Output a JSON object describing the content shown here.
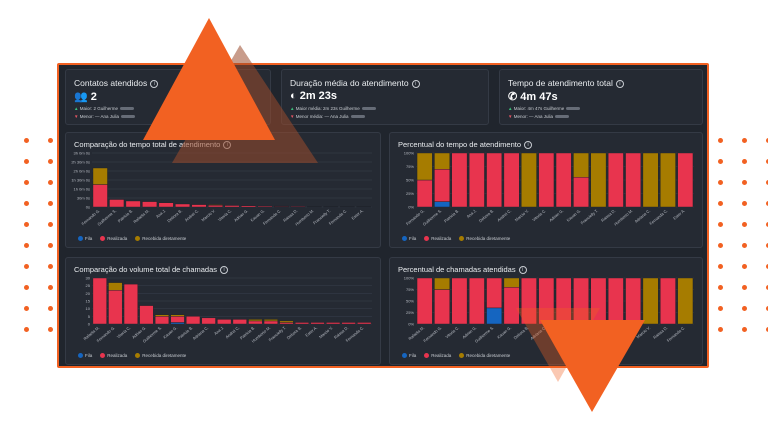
{
  "colors": {
    "accent": "#f26122",
    "fila": "#1565c0",
    "realizada": "#e8344e",
    "recebida": "#a67c00"
  },
  "kpis": [
    {
      "title": "Contatos atendidos",
      "icon": "people-icon",
      "value": "2",
      "max": "Maior: 2 Guilherme",
      "min": "Menor: — Ana Julia"
    },
    {
      "title": "Duração média do atendimento",
      "icon": "headset-icon",
      "value": "2m 23s",
      "max": "Maior média: 2m 23s Guilherme",
      "min": "Menor média: — Ana Julia"
    },
    {
      "title": "Tempo de atendimento total",
      "icon": "phone-icon",
      "value": "4m 47s",
      "max": "Maior: 4m 47s Guilherme",
      "min": "Menor: — Ana Julia"
    }
  ],
  "legend": {
    "fila": "Fila",
    "realizada": "Realizada",
    "recebida": "Recebida diretamente"
  },
  "chart_data": [
    {
      "type": "bar",
      "title": "Comparação do tempo total de atendimento",
      "categories": [
        "Fernando G.",
        "Guilherme S.",
        "Patricia B.",
        "Rafaela M.",
        "Ana J.",
        "Debora B.",
        "Andrei C.",
        "Marcio V.",
        "Vitoria C.",
        "Adrian G.",
        "Kauan G.",
        "Fernanda C.",
        "Raissa D.",
        "Humberto M.",
        "Francielly T.",
        "Fernanda C.",
        "Ester A."
      ],
      "ylabels": [
        "0s",
        "30m 0s",
        "1h 0m 0s",
        "1h 30m 0s",
        "2h 0m 0s",
        "2h 30m 0s",
        "3h 0m 0s"
      ],
      "ylim": [
        0,
        180
      ],
      "series": [
        {
          "name": "Fila",
          "values": [
            0,
            0,
            0,
            0,
            0,
            0,
            0,
            0,
            0,
            0,
            0,
            0,
            0,
            0,
            0,
            0,
            0
          ]
        },
        {
          "name": "Realizada",
          "values": [
            75,
            25,
            20,
            18,
            14,
            10,
            8,
            6,
            5,
            4,
            3,
            2,
            2,
            1,
            1,
            1,
            1
          ]
        },
        {
          "name": "Recebida diretamente",
          "values": [
            55,
            0,
            0,
            0,
            0,
            0,
            0,
            2,
            0,
            0,
            0,
            1,
            0,
            0,
            0,
            0,
            0
          ]
        }
      ]
    },
    {
      "type": "bar",
      "title": "Percentual do tempo de atendimento",
      "categories": [
        "Fernando G.",
        "Guilherme S.",
        "Patricia B.",
        "Ana J.",
        "Debora B.",
        "Andrei C.",
        "Marcio V.",
        "Vitoria C.",
        "Adrian G.",
        "Kauan G.",
        "Francielly T.",
        "Raissa D.",
        "Humberto M.",
        "Adriana C.",
        "Fernanda C.",
        "Ester A."
      ],
      "ylabels": [
        "0%",
        "25%",
        "50%",
        "75%",
        "100%"
      ],
      "ylim": [
        0,
        100
      ],
      "series": [
        {
          "name": "Fila",
          "values": [
            0,
            10,
            0,
            0,
            0,
            0,
            0,
            0,
            0,
            0,
            0,
            0,
            0,
            0,
            0,
            0
          ]
        },
        {
          "name": "Realizada",
          "values": [
            50,
            60,
            100,
            100,
            100,
            100,
            0,
            100,
            100,
            55,
            0,
            100,
            100,
            0,
            0,
            100
          ]
        },
        {
          "name": "Recebida diretamente",
          "values": [
            50,
            30,
            0,
            0,
            0,
            0,
            100,
            0,
            0,
            45,
            100,
            0,
            0,
            100,
            100,
            0
          ]
        }
      ]
    },
    {
      "type": "bar",
      "title": "Comparação do volume total de chamadas",
      "categories": [
        "Rafaela M.",
        "Fernando G.",
        "Vitoria C.",
        "Adrian G.",
        "Guilherme S.",
        "Kauan G.",
        "Patricia B.",
        "Adriana C.",
        "Ana J.",
        "Andrei C.",
        "Patricia B.",
        "Humberto M.",
        "Francielly T.",
        "Debora B.",
        "Ester A.",
        "Marcio V.",
        "Raissa D.",
        "Fernanda C."
      ],
      "ylabels": [
        "0",
        "5",
        "10",
        "15",
        "20",
        "25",
        "30"
      ],
      "ylim": [
        0,
        30
      ],
      "series": [
        {
          "name": "Fila",
          "values": [
            0,
            0,
            0,
            0,
            0,
            1,
            0,
            0,
            0,
            0,
            0,
            0,
            0,
            0,
            0,
            0,
            0,
            0
          ]
        },
        {
          "name": "Realizada",
          "values": [
            30,
            22,
            26,
            12,
            5,
            4,
            5,
            4,
            3,
            3,
            2,
            2,
            1,
            1,
            1,
            1,
            1,
            1
          ]
        },
        {
          "name": "Recebida diretamente",
          "values": [
            0,
            5,
            0,
            0,
            1,
            1,
            0,
            0,
            0,
            0,
            1,
            1,
            1,
            0,
            0,
            0,
            0,
            0
          ]
        }
      ]
    },
    {
      "type": "bar",
      "title": "Percentual de chamadas atendidas",
      "categories": [
        "Rafaela M.",
        "Fernando G.",
        "Vitoria C.",
        "Adrian G.",
        "Guilherme S.",
        "Kauan G.",
        "Debora B.",
        "Adriana C.",
        "Ana J.",
        "Andrei C.",
        "Patricia B.",
        "Humberto M.",
        "Francielly T.",
        "Marcio V.",
        "Raissa D.",
        "Fernanda C."
      ],
      "ylabels": [
        "0%",
        "25%",
        "50%",
        "75%",
        "100%"
      ],
      "ylim": [
        0,
        100
      ],
      "series": [
        {
          "name": "Fila",
          "values": [
            0,
            0,
            0,
            0,
            35,
            0,
            0,
            0,
            0,
            0,
            0,
            0,
            0,
            0,
            0,
            0
          ]
        },
        {
          "name": "Realizada",
          "values": [
            100,
            75,
            100,
            100,
            65,
            80,
            100,
            100,
            100,
            100,
            100,
            100,
            100,
            0,
            100,
            0
          ]
        },
        {
          "name": "Recebida diretamente",
          "values": [
            0,
            25,
            0,
            0,
            0,
            20,
            0,
            0,
            0,
            0,
            0,
            0,
            0,
            100,
            0,
            100
          ]
        }
      ]
    }
  ]
}
